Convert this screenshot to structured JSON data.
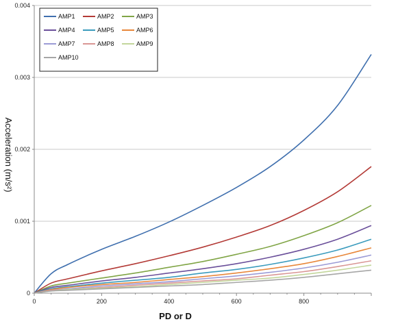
{
  "chart_data": {
    "type": "line",
    "title": "",
    "xlabel": "PD  or  D",
    "ylabel": "Acceleration (m/s²)",
    "xlim": [
      0,
      1000
    ],
    "ylim": [
      0,
      0.004
    ],
    "x_ticks": [
      "0",
      "200",
      "400",
      "600",
      "800"
    ],
    "x_tick_values": [
      0,
      200,
      400,
      600,
      800
    ],
    "y_ticks": [
      "0",
      "0.001",
      "0.002",
      "0.003",
      "0.004"
    ],
    "y_tick_values": [
      0,
      0.001,
      0.002,
      0.003,
      0.004
    ],
    "grid": "horizontal",
    "legend_position": "top-left",
    "x": [
      0,
      50,
      100,
      200,
      300,
      400,
      500,
      600,
      700,
      800,
      900,
      1000
    ],
    "series": [
      {
        "name": "AMP1",
        "color": "#3f6fae",
        "values": [
          0,
          0.00027,
          0.0004,
          0.00061,
          0.00079,
          0.00099,
          0.00122,
          0.00147,
          0.00176,
          0.00213,
          0.00261,
          0.00332
        ]
      },
      {
        "name": "AMP2",
        "color": "#b33a36",
        "values": [
          0,
          0.00014,
          0.0002,
          0.00031,
          0.00041,
          0.00052,
          0.00064,
          0.00078,
          0.00094,
          0.00115,
          0.00141,
          0.00176
        ]
      },
      {
        "name": "AMP3",
        "color": "#80a546",
        "values": [
          0,
          0.0001,
          0.00014,
          0.00021,
          0.00028,
          0.00036,
          0.00044,
          0.00054,
          0.00065,
          0.0008,
          0.00098,
          0.00122
        ]
      },
      {
        "name": "AMP4",
        "color": "#6a4f9a",
        "values": [
          0,
          8e-05,
          0.00011,
          0.00017,
          0.00022,
          0.00028,
          0.00034,
          0.00041,
          0.0005,
          0.00061,
          0.00075,
          0.00094
        ]
      },
      {
        "name": "AMP5",
        "color": "#3a9bbd",
        "values": [
          0,
          6e-05,
          9e-05,
          0.00014,
          0.00018,
          0.00022,
          0.00028,
          0.00033,
          0.0004,
          0.00049,
          0.0006,
          0.00075
        ]
      },
      {
        "name": "AMP6",
        "color": "#e8873a",
        "values": [
          0,
          5e-05,
          8e-05,
          0.00012,
          0.00015,
          0.00019,
          0.00023,
          0.00028,
          0.00034,
          0.00041,
          0.00051,
          0.00063
        ]
      },
      {
        "name": "AMP7",
        "color": "#9b9bd6",
        "values": [
          0,
          4e-05,
          6e-05,
          0.0001,
          0.00013,
          0.00016,
          0.0002,
          0.00024,
          0.00029,
          0.00035,
          0.00043,
          0.00053
        ]
      },
      {
        "name": "AMP8",
        "color": "#d99694",
        "values": [
          0,
          4e-05,
          5e-05,
          8e-05,
          0.00011,
          0.00014,
          0.00017,
          0.0002,
          0.00025,
          0.0003,
          0.00037,
          0.00045
        ]
      },
      {
        "name": "AMP9",
        "color": "#c3d69b",
        "values": [
          0,
          3e-05,
          5e-05,
          7e-05,
          9e-05,
          0.00012,
          0.00015,
          0.00018,
          0.00021,
          0.00026,
          0.00032,
          0.00039
        ]
      },
      {
        "name": "AMP10",
        "color": "#a6a6a6",
        "values": [
          0,
          3e-05,
          4e-05,
          6e-05,
          8e-05,
          0.0001,
          0.00012,
          0.00015,
          0.00018,
          0.00022,
          0.00027,
          0.00032
        ]
      }
    ]
  }
}
